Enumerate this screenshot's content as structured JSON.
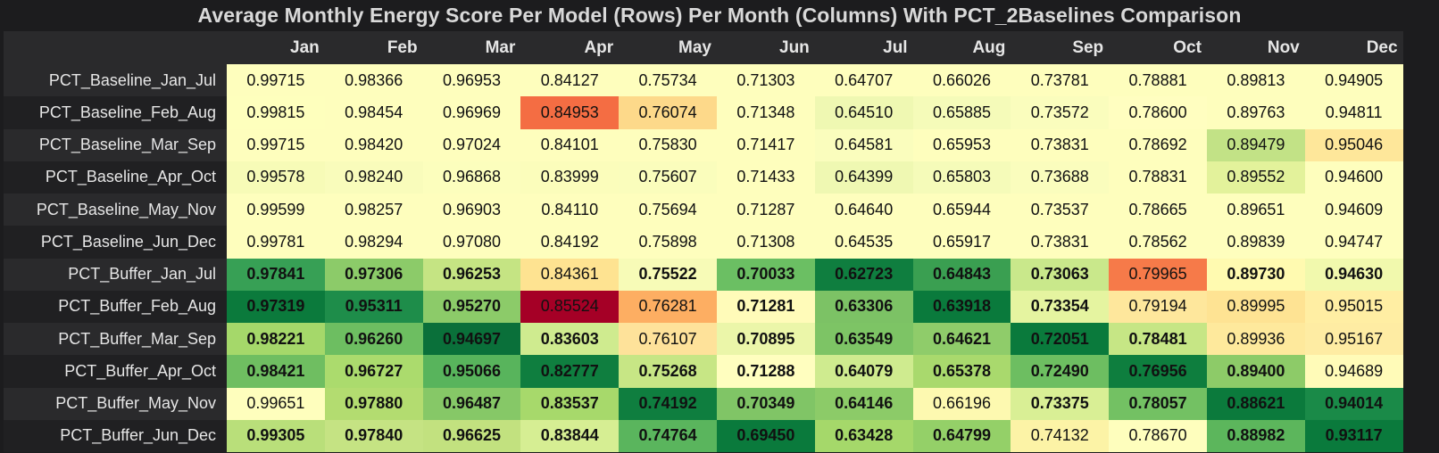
{
  "chart_data": {
    "type": "heatmap",
    "title": "Average Monthly Energy Score Per Model (Rows) Per Month (Columns) With PCT_2Baselines Comparison",
    "columns": [
      "Jan",
      "Feb",
      "Mar",
      "Apr",
      "May",
      "Jun",
      "Jul",
      "Aug",
      "Sep",
      "Oct",
      "Nov",
      "Dec"
    ],
    "rows": [
      {
        "label": "PCT_Baseline_Jan_Jul",
        "values": [
          "0.99715",
          "0.98366",
          "0.96953",
          "0.84127",
          "0.75734",
          "0.71303",
          "0.64707",
          "0.66026",
          "0.73781",
          "0.78881",
          "0.89813",
          "0.94905"
        ],
        "colors": [
          "#fefebd",
          "#fefebd",
          "#fefebd",
          "#fefebd",
          "#fefebd",
          "#fefebd",
          "#fefebd",
          "#fefebd",
          "#fefebd",
          "#fefebd",
          "#fefebd",
          "#fefebd"
        ],
        "bold": [
          false,
          false,
          false,
          false,
          false,
          false,
          false,
          false,
          false,
          false,
          false,
          false
        ]
      },
      {
        "label": "PCT_Baseline_Feb_Aug",
        "values": [
          "0.99815",
          "0.98454",
          "0.96969",
          "0.84953",
          "0.76074",
          "0.71348",
          "0.64510",
          "0.65885",
          "0.73572",
          "0.78600",
          "0.89763",
          "0.94811"
        ],
        "colors": [
          "#feffbd",
          "#fefebd",
          "#fefebd",
          "#f46d43",
          "#fdd98a",
          "#fefebd",
          "#eff8b2",
          "#f5fbb9",
          "#fafdbd",
          "#fffec0",
          "#fefebd",
          "#fefebd"
        ],
        "bold": [
          false,
          false,
          false,
          false,
          false,
          false,
          false,
          false,
          false,
          false,
          false,
          false
        ]
      },
      {
        "label": "PCT_Baseline_Mar_Sep",
        "values": [
          "0.99715",
          "0.98420",
          "0.97024",
          "0.84101",
          "0.75830",
          "0.71417",
          "0.64581",
          "0.65953",
          "0.73831",
          "0.78692",
          "0.89479",
          "0.95046"
        ],
        "colors": [
          "#fefebd",
          "#fefebd",
          "#fefebd",
          "#fefebd",
          "#fefebd",
          "#fefebd",
          "#fafdbd",
          "#fefebd",
          "#fefebd",
          "#fefebd",
          "#c2e286",
          "#fee79a"
        ],
        "bold": [
          false,
          false,
          false,
          false,
          false,
          false,
          false,
          false,
          false,
          false,
          false,
          false
        ]
      },
      {
        "label": "PCT_Baseline_Apr_Oct",
        "values": [
          "0.99578",
          "0.98240",
          "0.96868",
          "0.83999",
          "0.75607",
          "0.71433",
          "0.64399",
          "0.65803",
          "0.73688",
          "0.78831",
          "0.89552",
          "0.94600"
        ],
        "colors": [
          "#f7fbb7",
          "#f9fcbb",
          "#fcfebd",
          "#fbfdbb",
          "#fafdbc",
          "#fefebd",
          "#eff8b2",
          "#f5fbb9",
          "#fafdbd",
          "#fefebd",
          "#e3f29b",
          "#fefebd"
        ],
        "bold": [
          false,
          false,
          false,
          false,
          false,
          false,
          false,
          false,
          false,
          false,
          false,
          false
        ]
      },
      {
        "label": "PCT_Baseline_May_Nov",
        "values": [
          "0.99599",
          "0.98257",
          "0.96903",
          "0.84110",
          "0.75694",
          "0.71287",
          "0.64640",
          "0.65944",
          "0.73537",
          "0.78665",
          "0.89651",
          "0.94609"
        ],
        "colors": [
          "#fefebd",
          "#fefebd",
          "#fefebd",
          "#fefebd",
          "#fefebd",
          "#fefebd",
          "#fefebd",
          "#fefebd",
          "#fefebd",
          "#fefebd",
          "#fefebd",
          "#fefebd"
        ],
        "bold": [
          false,
          false,
          false,
          false,
          false,
          false,
          false,
          false,
          false,
          false,
          false,
          false
        ]
      },
      {
        "label": "PCT_Baseline_Jun_Dec",
        "values": [
          "0.99781",
          "0.98294",
          "0.97080",
          "0.84192",
          "0.75898",
          "0.71308",
          "0.64535",
          "0.65917",
          "0.73831",
          "0.78562",
          "0.89839",
          "0.94747"
        ],
        "colors": [
          "#fefebd",
          "#fefebd",
          "#fefebd",
          "#fefebd",
          "#fefebd",
          "#fefebd",
          "#fefebd",
          "#fefebd",
          "#fefebd",
          "#fefebd",
          "#fefebd",
          "#fefebd"
        ],
        "bold": [
          false,
          false,
          false,
          false,
          false,
          false,
          false,
          false,
          false,
          false,
          false,
          false
        ]
      },
      {
        "label": "PCT_Buffer_Jan_Jul",
        "values": [
          "0.97841",
          "0.97306",
          "0.96253",
          "0.84361",
          "0.75522",
          "0.70033",
          "0.62723",
          "0.64843",
          "0.73063",
          "0.79965",
          "0.89730",
          "0.94630"
        ],
        "colors": [
          "#37a055",
          "#8ccb69",
          "#c5e483",
          "#fee391",
          "#f7fbb7",
          "#6bbf63",
          "#0f7e3f",
          "#3a9f51",
          "#c9e88b",
          "#f67a49",
          "#fffab0",
          "#f1f9ad"
        ],
        "bold": [
          true,
          true,
          true,
          false,
          true,
          true,
          true,
          true,
          true,
          false,
          true,
          true
        ]
      },
      {
        "label": "PCT_Buffer_Feb_Aug",
        "values": [
          "0.97319",
          "0.95311",
          "0.95270",
          "0.85524",
          "0.76281",
          "0.71281",
          "0.63306",
          "0.63918",
          "0.73354",
          "0.79194",
          "0.89995",
          "0.95015"
        ],
        "colors": [
          "#0b7a3c",
          "#1e8d4a",
          "#8ccb69",
          "#a50026",
          "#fdae62",
          "#fffbb9",
          "#7cc265",
          "#0a7a3c",
          "#e5f4a0",
          "#fee79c",
          "#fee393",
          "#ffeea3"
        ],
        "bold": [
          true,
          true,
          true,
          false,
          false,
          true,
          true,
          true,
          true,
          false,
          false,
          false
        ]
      },
      {
        "label": "PCT_Buffer_Mar_Sep",
        "values": [
          "0.98221",
          "0.96260",
          "0.94697",
          "0.83603",
          "0.76107",
          "0.70895",
          "0.63549",
          "0.64621",
          "0.72051",
          "0.78481",
          "0.89936",
          "0.95167"
        ],
        "colors": [
          "#a5d86a",
          "#6dbe61",
          "#0a703a",
          "#cfeb8f",
          "#fee29a",
          "#ebf6a9",
          "#7dc465",
          "#8fcc6a",
          "#0a7a3c",
          "#c6e685",
          "#fee99c",
          "#feeca3"
        ],
        "bold": [
          true,
          true,
          true,
          true,
          false,
          true,
          true,
          true,
          true,
          true,
          false,
          false
        ]
      },
      {
        "label": "PCT_Buffer_Apr_Oct",
        "values": [
          "0.98421",
          "0.96727",
          "0.95066",
          "0.82777",
          "0.75268",
          "0.71288",
          "0.64079",
          "0.65378",
          "0.72490",
          "0.76956",
          "0.89400",
          "0.94689"
        ],
        "colors": [
          "#6fbe61",
          "#abdb6d",
          "#58b45c",
          "#0f7e3f",
          "#c7e685",
          "#fffebf",
          "#cfeb8f",
          "#a9d96d",
          "#6dbe61",
          "#0e7e3e",
          "#8dcb68",
          "#fffbb8"
        ],
        "bold": [
          true,
          true,
          true,
          true,
          true,
          true,
          true,
          true,
          true,
          true,
          true,
          false
        ]
      },
      {
        "label": "PCT_Buffer_May_Nov",
        "values": [
          "0.99651",
          "0.97880",
          "0.96487",
          "0.83537",
          "0.74192",
          "0.70349",
          "0.64146",
          "0.66196",
          "0.73375",
          "0.78057",
          "0.88621",
          "0.94014"
        ],
        "colors": [
          "#fefebd",
          "#b3dc70",
          "#86c867",
          "#a7d96b",
          "#0f7e3f",
          "#80c566",
          "#8ccb68",
          "#fdf9b0",
          "#d9ef95",
          "#73c163",
          "#0b7a3c",
          "#1a8a48"
        ],
        "bold": [
          false,
          true,
          true,
          true,
          true,
          true,
          true,
          false,
          true,
          true,
          true,
          true
        ]
      },
      {
        "label": "PCT_Buffer_Jun_Dec",
        "values": [
          "0.99305",
          "0.97840",
          "0.96625",
          "0.83844",
          "0.74764",
          "0.69450",
          "0.63428",
          "0.64799",
          "0.74132",
          "0.78670",
          "0.88982",
          "0.93117"
        ],
        "colors": [
          "#b9df7a",
          "#c5e383",
          "#c2e17f",
          "#d6ee93",
          "#5ab55d",
          "#0a7a3c",
          "#a5d86a",
          "#94d068",
          "#fcf3a6",
          "#fefebd",
          "#5cb65c",
          "#0a7a3c"
        ],
        "bold": [
          true,
          true,
          true,
          true,
          true,
          true,
          true,
          true,
          false,
          false,
          true,
          true
        ]
      }
    ]
  }
}
